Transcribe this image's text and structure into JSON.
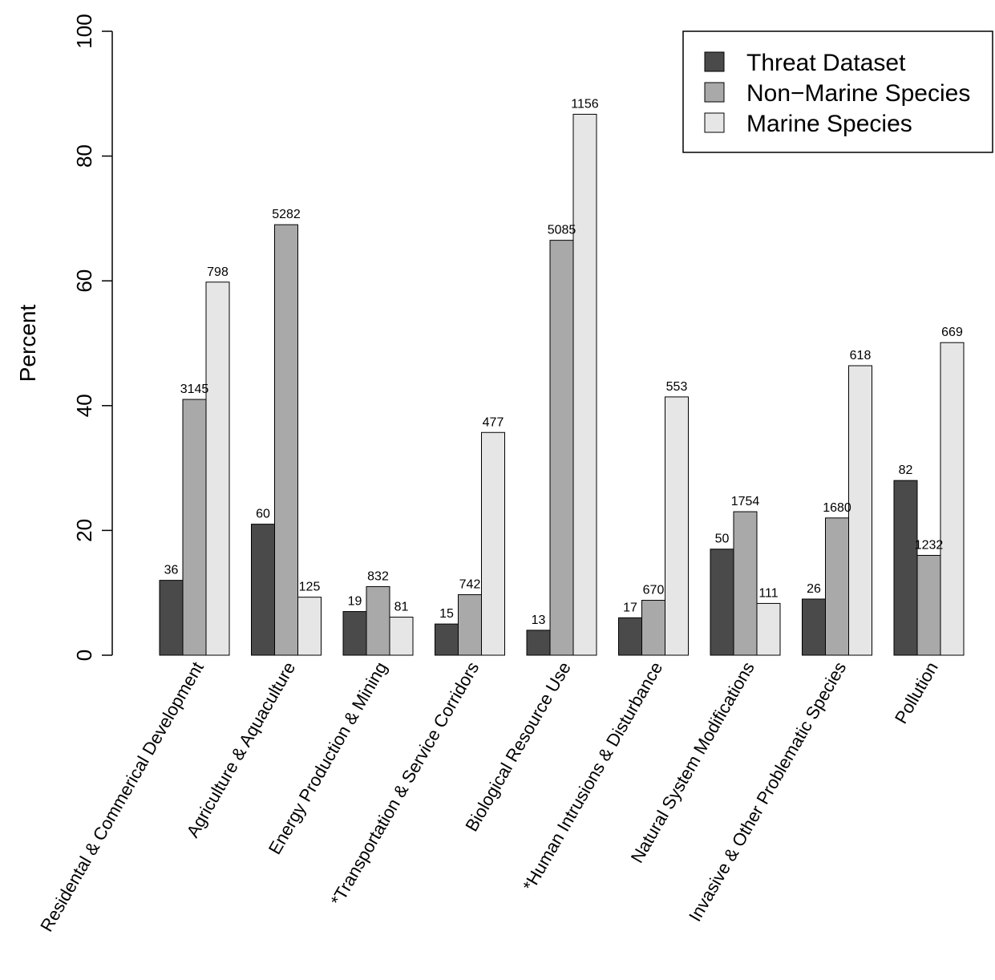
{
  "chart_data": {
    "type": "bar",
    "title": "",
    "xlabel": "",
    "ylabel": "Percent",
    "ylim": [
      0,
      100
    ],
    "yticks": [
      0,
      20,
      40,
      60,
      80,
      100
    ],
    "grid": false,
    "legend_position": "top-right",
    "categories": [
      "Residental & Commerical Development",
      "Agriculture & Aquaculture",
      "Energy Production & Mining",
      "*Transportation & Service Corridors",
      "Biological Resource Use",
      "*Human Intrusions & Disturbance",
      "Natural System Modifications",
      "Invasive & Other Problematic Species",
      "Pollution"
    ],
    "series": [
      {
        "name": "Threat Dataset",
        "color": "#4a4a4a",
        "values": [
          12,
          21,
          7,
          5,
          4,
          6,
          17,
          9,
          28
        ],
        "labels": [
          "36",
          "60",
          "19",
          "15",
          "13",
          "17",
          "50",
          "26",
          "82"
        ]
      },
      {
        "name": "Non−Marine Species",
        "color": "#a9a9a9",
        "values": [
          41,
          69,
          11,
          9.7,
          66.5,
          8.8,
          23,
          22,
          16
        ],
        "labels": [
          "3145",
          "5282",
          "832",
          "742",
          "5085",
          "670",
          "1754",
          "1680",
          "1232"
        ]
      },
      {
        "name": "Marine Species",
        "color": "#e6e6e6",
        "values": [
          59.8,
          9.3,
          6.1,
          35.7,
          86.7,
          41.4,
          8.3,
          46.4,
          50.1
        ],
        "labels": [
          "798",
          "125",
          "81",
          "477",
          "1156",
          "553",
          "111",
          "618",
          "669"
        ]
      }
    ]
  }
}
